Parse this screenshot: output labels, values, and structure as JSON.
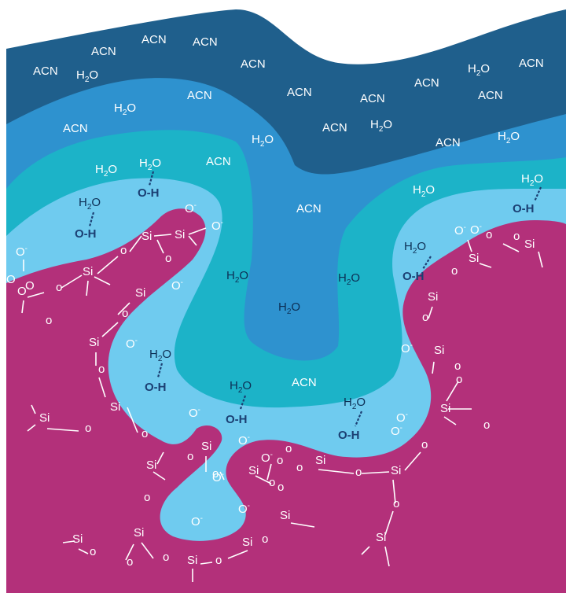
{
  "colors": {
    "silica": "#b3307a",
    "dark_acn": "#1f5f8c",
    "mid_water": "#2e92cf",
    "teal": "#1cb3c8",
    "light_water": "#6fcbef"
  },
  "labels": {
    "acn": "ACN",
    "water_h": "H",
    "water_sub": "2",
    "water_o": "O",
    "si": "Si",
    "o": "O",
    "o_minus": "O",
    "minus": "-",
    "oh": "O-H",
    "bridge_o": "o"
  }
}
